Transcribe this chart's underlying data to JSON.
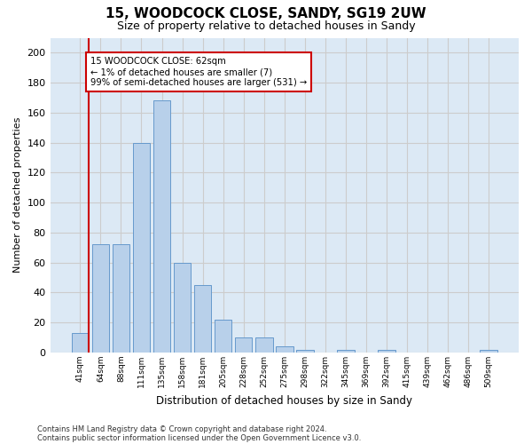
{
  "title1": "15, WOODCOCK CLOSE, SANDY, SG19 2UW",
  "title2": "Size of property relative to detached houses in Sandy",
  "xlabel": "Distribution of detached houses by size in Sandy",
  "ylabel": "Number of detached properties",
  "bar_labels": [
    "41sqm",
    "64sqm",
    "88sqm",
    "111sqm",
    "135sqm",
    "158sqm",
    "181sqm",
    "205sqm",
    "228sqm",
    "252sqm",
    "275sqm",
    "298sqm",
    "322sqm",
    "345sqm",
    "369sqm",
    "392sqm",
    "415sqm",
    "439sqm",
    "462sqm",
    "486sqm",
    "509sqm"
  ],
  "bar_values": [
    13,
    72,
    72,
    140,
    168,
    60,
    45,
    22,
    10,
    10,
    4,
    2,
    0,
    2,
    0,
    2,
    0,
    0,
    0,
    0,
    2
  ],
  "bar_color": "#b8d0ea",
  "bar_edge_color": "#6699cc",
  "annotation_text_line1": "15 WOODCOCK CLOSE: 62sqm",
  "annotation_text_line2": "← 1% of detached houses are smaller (7)",
  "annotation_text_line3": "99% of semi-detached houses are larger (531) →",
  "annotation_box_color": "#ffffff",
  "annotation_box_edge": "#cc0000",
  "vline_color": "#cc0000",
  "vline_x": 0.43,
  "ylim": [
    0,
    210
  ],
  "yticks": [
    0,
    20,
    40,
    60,
    80,
    100,
    120,
    140,
    160,
    180,
    200
  ],
  "footer1": "Contains HM Land Registry data © Crown copyright and database right 2024.",
  "footer2": "Contains public sector information licensed under the Open Government Licence v3.0.",
  "grid_color": "#cccccc",
  "axes_background": "#dce9f5"
}
